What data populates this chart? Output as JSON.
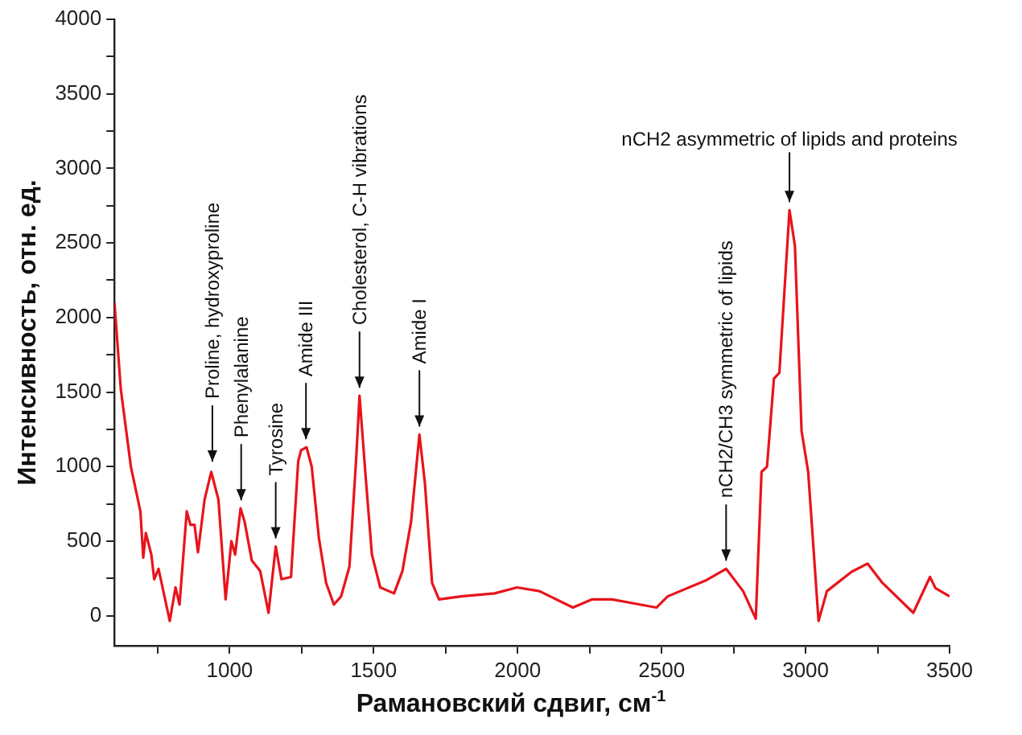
{
  "chart_data": {
    "type": "line",
    "xlabel": "Рамановский сдвиг, см$^{-1}$",
    "ylabel": "Интенсивность, отн. ед.",
    "color": "#e8141b",
    "marker": "none",
    "line_style": "solid",
    "grid": false,
    "legend": false,
    "x": [
      600,
      622,
      657,
      690,
      700,
      709,
      728,
      738,
      753,
      767,
      792,
      812,
      826,
      851,
      864,
      878,
      890,
      913,
      936,
      961,
      986,
      1006,
      1019,
      1038,
      1052,
      1077,
      1106,
      1135,
      1160,
      1180,
      1213,
      1238,
      1248,
      1267,
      1285,
      1310,
      1335,
      1362,
      1387,
      1416,
      1440,
      1451,
      1474,
      1494,
      1523,
      1571,
      1600,
      1630,
      1659,
      1678,
      1703,
      1727,
      1804,
      1920,
      1998,
      2076,
      2192,
      2259,
      2327,
      2482,
      2521,
      2657,
      2724,
      2783,
      2827,
      2847,
      2866,
      2890,
      2909,
      2944,
      2963,
      2986,
      3009,
      3045,
      3074,
      3160,
      3215,
      3267,
      3374,
      3432,
      3451,
      3500
    ],
    "values": [
      2100,
      1520,
      1000,
      700,
      390,
      555,
      410,
      245,
      315,
      190,
      -35,
      190,
      75,
      700,
      610,
      610,
      425,
      780,
      965,
      780,
      110,
      500,
      410,
      720,
      630,
      370,
      300,
      20,
      465,
      245,
      260,
      1035,
      1110,
      1130,
      1000,
      520,
      220,
      75,
      130,
      330,
      1075,
      1475,
      890,
      410,
      190,
      150,
      300,
      630,
      1215,
      890,
      220,
      110,
      130,
      150,
      190,
      165,
      55,
      110,
      110,
      55,
      130,
      240,
      315,
      165,
      -20,
      965,
      1000,
      1590,
      1630,
      2720,
      2480,
      1240,
      965,
      -35,
      165,
      295,
      350,
      220,
      20,
      260,
      185,
      130
    ],
    "xlim": [
      600,
      3500
    ],
    "ylim": [
      -200,
      4000
    ],
    "xticks": [
      {
        "value": 750,
        "label": null
      },
      1000,
      {
        "value": 1250,
        "label": null
      },
      1500,
      {
        "value": 1750,
        "label": null
      },
      2000,
      {
        "value": 2250,
        "label": null
      },
      2500,
      {
        "value": 2750,
        "label": null
      },
      3000,
      {
        "value": 3250,
        "label": null
      },
      3500
    ],
    "yticks": [
      0,
      {
        "value": 250,
        "label": null
      },
      500,
      {
        "value": 750,
        "label": null
      },
      1000,
      {
        "value": 1250,
        "label": null
      },
      1500,
      {
        "value": 1750,
        "label": null
      },
      2000,
      {
        "value": 2250,
        "label": null
      },
      2500,
      {
        "value": 2750,
        "label": null
      },
      3000,
      {
        "value": 3250,
        "label": null
      },
      3500,
      {
        "value": 3750,
        "label": null
      },
      4000
    ],
    "annotations": [
      {
        "text": "Proline, hydroxyproline",
        "x": 940,
        "y": 980
      },
      {
        "text": "Phenylalanine",
        "x": 1040,
        "y": 720
      },
      {
        "text": "Tyrosine",
        "x": 1160,
        "y": 465
      },
      {
        "text": "Amide III",
        "x": 1265,
        "y": 1130
      },
      {
        "text": "Cholesterol, C-H vibrations",
        "x": 1451,
        "y": 1475
      },
      {
        "text": "Amide I",
        "x": 1659,
        "y": 1215
      },
      {
        "text": "nCH2/CH3 symmetric of lipids",
        "x": 2724,
        "y": 315
      },
      {
        "text": "nCH2 asymmetric of lipids and proteins",
        "x": 2944,
        "y": 2720
      }
    ]
  }
}
